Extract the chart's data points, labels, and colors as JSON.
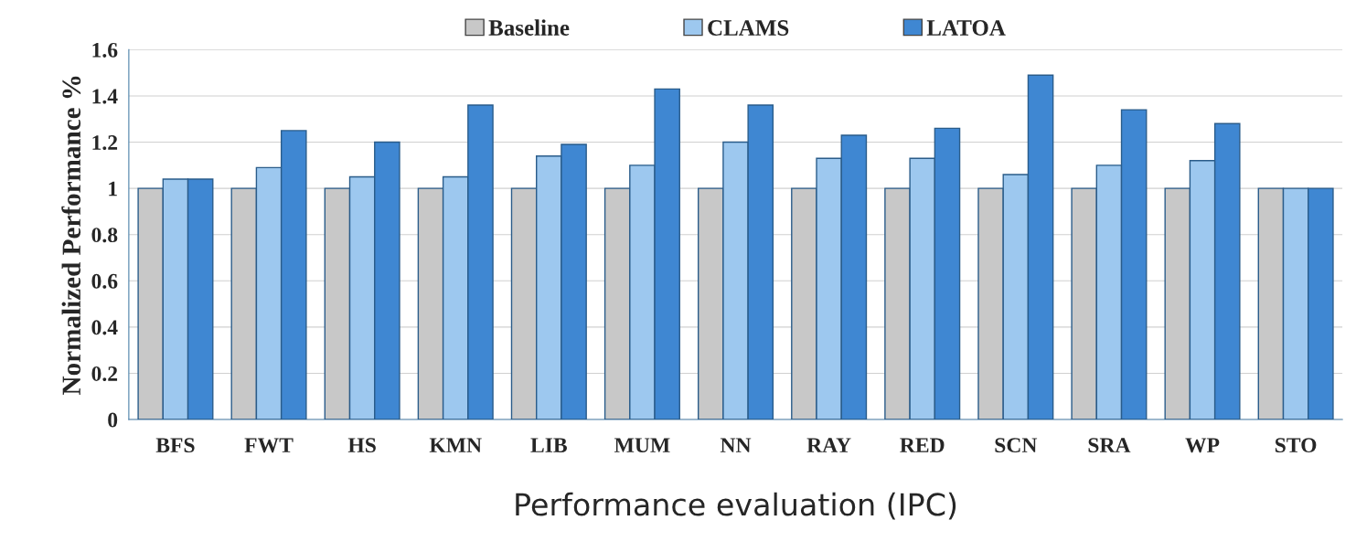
{
  "chart_data": {
    "type": "bar",
    "xlabel": "Performance evaluation (IPC)",
    "ylabel": "Normalized Performance %",
    "categories": [
      "BFS",
      "FWT",
      "HS",
      "KMN",
      "LIB",
      "MUM",
      "NN",
      "RAY",
      "RED",
      "SCN",
      "SRA",
      "WP",
      "STO"
    ],
    "series": [
      {
        "name": "Baseline",
        "color": "#c8c8c8",
        "values": [
          1,
          1,
          1,
          1,
          1,
          1,
          1,
          1,
          1,
          1,
          1,
          1,
          1
        ]
      },
      {
        "name": "CLAMS",
        "color": "#9dc8ef",
        "values": [
          1.04,
          1.09,
          1.05,
          1.05,
          1.14,
          1.1,
          1.2,
          1.13,
          1.13,
          1.06,
          1.1,
          1.12,
          1
        ]
      },
      {
        "name": "LATOA",
        "color": "#3f87d2",
        "values": [
          1.04,
          1.25,
          1.2,
          1.36,
          1.19,
          1.43,
          1.36,
          1.23,
          1.26,
          1.49,
          1.34,
          1.28,
          1
        ]
      }
    ],
    "ylim": [
      0,
      1.6
    ],
    "yticks": [
      0,
      0.2,
      0.4,
      0.6,
      0.8,
      1,
      1.2,
      1.4,
      1.6
    ],
    "grid": "y",
    "legend": "top"
  }
}
